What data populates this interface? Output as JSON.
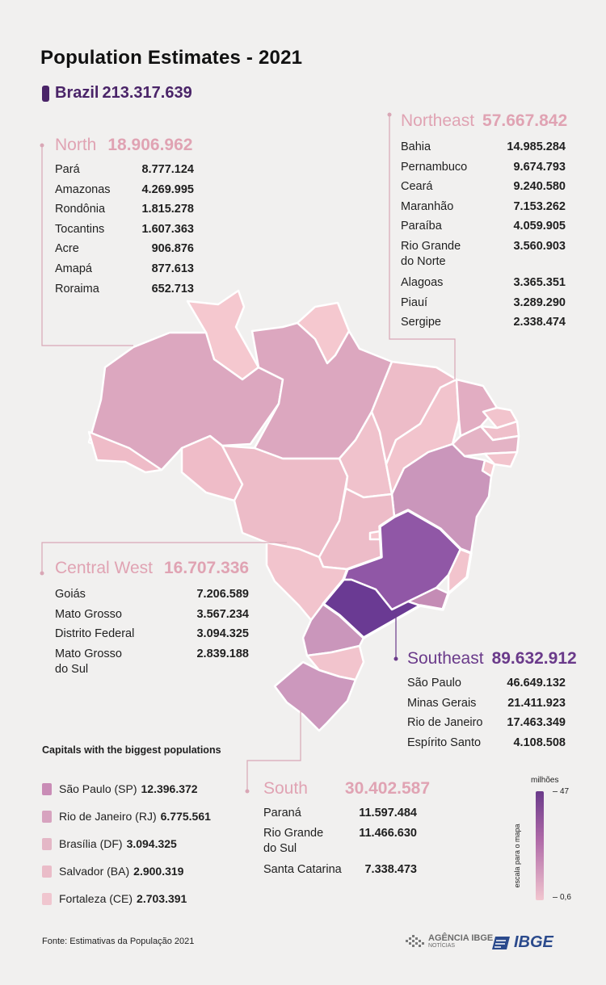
{
  "title": "Population Estimates - 2021",
  "brazil": {
    "label": "Brazil",
    "value": "213.317.639"
  },
  "regions": {
    "north": {
      "name": "North",
      "total": "18.906.962",
      "states": [
        {
          "name": "Pará",
          "value": "8.777.124"
        },
        {
          "name": "Amazonas",
          "value": "4.269.995"
        },
        {
          "name": "Rondônia",
          "value": "1.815.278"
        },
        {
          "name": "Tocantins",
          "value": "1.607.363"
        },
        {
          "name": "Acre",
          "value": "906.876"
        },
        {
          "name": "Amapá",
          "value": "877.613"
        },
        {
          "name": "Roraima",
          "value": "652.713"
        }
      ]
    },
    "northeast": {
      "name": "Northeast",
      "total": "57.667.842",
      "states": [
        {
          "name": "Bahia",
          "value": "14.985.284"
        },
        {
          "name": "Pernambuco",
          "value": "9.674.793"
        },
        {
          "name": "Ceará",
          "value": "9.240.580"
        },
        {
          "name": "Maranhão",
          "value": "7.153.262"
        },
        {
          "name": "Paraíba",
          "value": "4.059.905"
        },
        {
          "name": "Rio Grande",
          "name2": "do Norte",
          "value": "3.560.903"
        },
        {
          "name": "Alagoas",
          "value": "3.365.351"
        },
        {
          "name": "Piauí",
          "value": "3.289.290"
        },
        {
          "name": "Sergipe",
          "value": "2.338.474"
        }
      ]
    },
    "central_west": {
      "name": "Central West",
      "total": "16.707.336",
      "states": [
        {
          "name": "Goiás",
          "value": "7.206.589"
        },
        {
          "name": "Mato Grosso",
          "value": "3.567.234"
        },
        {
          "name": "Distrito Federal",
          "value": "3.094.325"
        },
        {
          "name": "Mato Grosso",
          "name2": "do Sul",
          "value": "2.839.188"
        }
      ]
    },
    "southeast": {
      "name": "Southeast",
      "total": "89.632.912",
      "states": [
        {
          "name": "São Paulo",
          "value": "46.649.132"
        },
        {
          "name": "Minas Gerais",
          "value": "21.411.923"
        },
        {
          "name": "Rio de Janeiro",
          "value": "17.463.349"
        },
        {
          "name": "Espírito Santo",
          "value": "4.108.508"
        }
      ]
    },
    "south": {
      "name": "South",
      "total": "30.402.587",
      "states": [
        {
          "name": "Paraná",
          "value": "11.597.484"
        },
        {
          "name": "Rio Grande",
          "name2": "do Sul",
          "value": "11.466.630"
        },
        {
          "name": "Santa Catarina",
          "value": "7.338.473"
        }
      ]
    }
  },
  "capitals": {
    "title": "Capitals with the biggest populations",
    "items": [
      {
        "name": "São Paulo (SP)",
        "value": "12.396.372",
        "color": "#c98cb6"
      },
      {
        "name": "Rio de Janeiro (RJ)",
        "value": "6.775.561",
        "color": "#d7a3bf"
      },
      {
        "name": "Brasília (DF)",
        "value": "3.094.325",
        "color": "#e4b7c6"
      },
      {
        "name": "Salvador (BA)",
        "value": "2.900.319",
        "color": "#eabcc8"
      },
      {
        "name": "Fortaleza (CE)",
        "value": "2.703.391",
        "color": "#f0c6cf"
      }
    ]
  },
  "legend": {
    "unit": "milhões",
    "max": "47",
    "min": "0,6",
    "side_label": "escala para o mapa"
  },
  "source": "Fonte: Estimativas da População 2021",
  "logos": {
    "agencia_line1": "AGÊNCIA IBGE",
    "agencia_line2": "NOTÍCIAS",
    "ibge": "IBGE"
  },
  "colors": {
    "sao_paulo": "#6a3a93",
    "minas": "#8f55a6",
    "bahia_rj_parana_rs": "#c996bb",
    "mid": "#d9a8c0",
    "light": "#e8bcc9",
    "lightest": "#f5c9d0",
    "pink_text": "#e0a3b3",
    "southeast_text": "#6a3a8a"
  }
}
